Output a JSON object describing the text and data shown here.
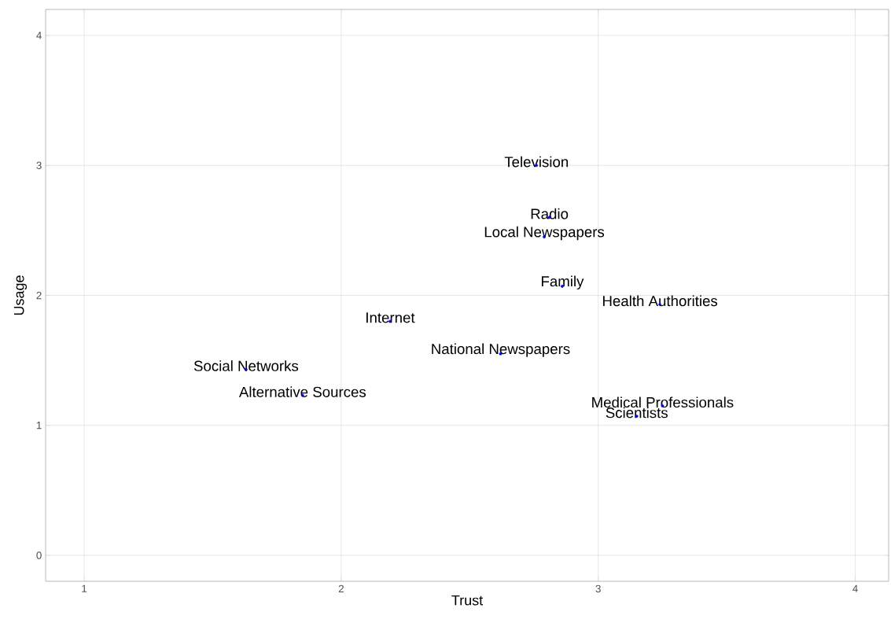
{
  "chart_data": {
    "type": "scatter",
    "xlabel": "Trust",
    "ylabel": "Usage",
    "x": [
      2.76,
      2.81,
      2.79,
      2.86,
      3.24,
      2.19,
      2.62,
      1.63,
      1.85,
      3.25,
      3.15
    ],
    "values": [
      3.0,
      2.6,
      2.45,
      2.07,
      1.93,
      1.8,
      1.55,
      1.43,
      1.23,
      1.15,
      1.07
    ],
    "value_labels": [
      "Television",
      "Radio",
      "Local Newspapers",
      "Family",
      "Health Authorities",
      "Internet",
      "National Newspapers",
      "Social Networks",
      "Alternative Sources",
      "Medical Professionals",
      "Scientists"
    ],
    "color": "#0000ff",
    "xlim": [
      0.85,
      4.13
    ],
    "ylim": [
      -0.2,
      4.2
    ],
    "xticks": [
      1,
      2,
      3,
      4
    ],
    "yticks": [
      0,
      1,
      2,
      3,
      4
    ],
    "grid": true
  }
}
